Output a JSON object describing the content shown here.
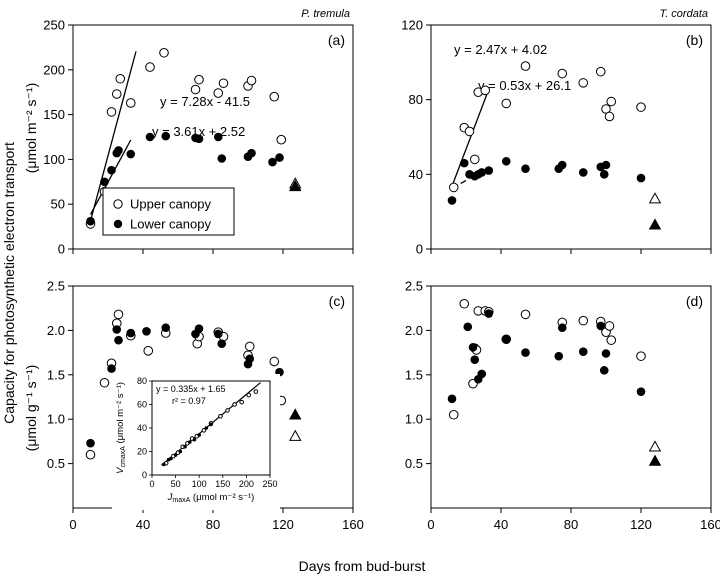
{
  "colors": {
    "ink": "#000000",
    "background": "#ffffff"
  },
  "labels": {
    "xlabel": "Days from bud-burst",
    "ylabel_line1": "Capacity for photosynthetic electron transport",
    "ylabel_top_line2": "(μmol m⁻² s⁻¹)",
    "ylabel_bottom_line2": "(μmol g⁻¹ s⁻¹)"
  },
  "legend": {
    "placement": "inside-bottom-left-of-panel-a",
    "upper": "Upper canopy",
    "lower": "Lower canopy"
  },
  "chart_data": [
    {
      "type": "scatter",
      "panel_label": "(a)",
      "species": "P. tremula",
      "xlim": [
        0,
        160
      ],
      "ylim": [
        0,
        250
      ],
      "xticks": [
        0,
        40,
        80,
        120,
        160
      ],
      "yticks": [
        0,
        50,
        100,
        150,
        200,
        250
      ],
      "x_tick_labels_shown": false,
      "series": [
        {
          "name": "Upper canopy",
          "marker": "open-circle",
          "points": [
            [
              10,
              28
            ],
            [
              18,
              64
            ],
            [
              22,
              153
            ],
            [
              25,
              173
            ],
            [
              27,
              190
            ],
            [
              33,
              163
            ],
            [
              44,
              203
            ],
            [
              52,
              219
            ],
            [
              70,
              178
            ],
            [
              72,
              189
            ],
            [
              83,
              174
            ],
            [
              86,
              185
            ],
            [
              100,
              182
            ],
            [
              102,
              188
            ],
            [
              115,
              170
            ],
            [
              119,
              122
            ]
          ]
        },
        {
          "name": "Lower canopy",
          "marker": "filled-circle",
          "points": [
            [
              10,
              31
            ],
            [
              18,
              75
            ],
            [
              22,
              88
            ],
            [
              25,
              107
            ],
            [
              26,
              110
            ],
            [
              33,
              106
            ],
            [
              44,
              125
            ],
            [
              53,
              126
            ],
            [
              70,
              124
            ],
            [
              72,
              123
            ],
            [
              83,
              125
            ],
            [
              85,
              101
            ],
            [
              100,
              103
            ],
            [
              102,
              107
            ],
            [
              114,
              97
            ],
            [
              118,
              102
            ]
          ]
        },
        {
          "name": "",
          "marker": "open-triangle",
          "points": [
            [
              127,
              73
            ]
          ]
        },
        {
          "name": "",
          "marker": "filled-triangle",
          "points": [
            [
              127,
              70
            ]
          ]
        }
      ],
      "fits": [
        {
          "label": "y = 7.28x - 41.5",
          "slope": 7.28,
          "intercept": -41.5,
          "x_range": [
            10,
            36
          ],
          "style": "solid"
        },
        {
          "label": "y = 3.61x + 2.52",
          "slope": 3.61,
          "intercept": 2.52,
          "x_range": [
            10,
            33
          ],
          "style": "solid"
        }
      ]
    },
    {
      "type": "scatter",
      "panel_label": "(b)",
      "species": "T. cordata",
      "xlim": [
        0,
        160
      ],
      "ylim": [
        0,
        120
      ],
      "xticks": [
        0,
        40,
        80,
        120,
        160
      ],
      "yticks": [
        0,
        40,
        80,
        120
      ],
      "x_tick_labels_shown": false,
      "series": [
        {
          "name": "Upper canopy",
          "marker": "open-circle",
          "points": [
            [
              13,
              33
            ],
            [
              19,
              65
            ],
            [
              22,
              63
            ],
            [
              25,
              48
            ],
            [
              27,
              84
            ],
            [
              31,
              85
            ],
            [
              43,
              78
            ],
            [
              54,
              98
            ],
            [
              75,
              94
            ],
            [
              87,
              89
            ],
            [
              97,
              95
            ],
            [
              100,
              75
            ],
            [
              102,
              71
            ],
            [
              103,
              79
            ],
            [
              120,
              76
            ]
          ]
        },
        {
          "name": "Lower canopy",
          "marker": "filled-circle",
          "points": [
            [
              12,
              26
            ],
            [
              19,
              46
            ],
            [
              22,
              40
            ],
            [
              25,
              39
            ],
            [
              27,
              40
            ],
            [
              29,
              41
            ],
            [
              33,
              42
            ],
            [
              43,
              47
            ],
            [
              54,
              43
            ],
            [
              73,
              43
            ],
            [
              75,
              45
            ],
            [
              87,
              41
            ],
            [
              97,
              44
            ],
            [
              99,
              40
            ],
            [
              100,
              45
            ],
            [
              120,
              38
            ]
          ]
        },
        {
          "name": "",
          "marker": "open-triangle",
          "points": [
            [
              128,
              27
            ]
          ]
        },
        {
          "name": "",
          "marker": "filled-triangle",
          "points": [
            [
              128,
              13
            ]
          ]
        }
      ],
      "fits": [
        {
          "label": "y = 2.47x + 4.02",
          "slope": 2.47,
          "intercept": 4.02,
          "x_range": [
            12,
            33
          ],
          "style": "solid"
        },
        {
          "label": "y = 0.53x + 26.1",
          "slope": 0.53,
          "intercept": 26.1,
          "x_range": [
            12,
            33
          ],
          "style": "dashed"
        }
      ]
    },
    {
      "type": "scatter",
      "panel_label": "(c)",
      "xlim": [
        0,
        160
      ],
      "ylim": [
        0,
        2.5
      ],
      "xticks": [
        0,
        40,
        80,
        120,
        160
      ],
      "yticks": [
        0.5,
        1.0,
        1.5,
        2.0,
        2.5
      ],
      "ytick_labels": [
        "0.5",
        "1.0",
        "1.5",
        "2.0",
        "2.5"
      ],
      "series": [
        {
          "name": "Upper canopy",
          "marker": "open-circle",
          "points": [
            [
              10,
              0.6
            ],
            [
              18,
              1.41
            ],
            [
              22,
              1.63
            ],
            [
              25,
              2.08
            ],
            [
              26,
              2.18
            ],
            [
              33,
              1.94
            ],
            [
              43,
              1.77
            ],
            [
              53,
              1.97
            ],
            [
              71,
              1.85
            ],
            [
              72,
              1.93
            ],
            [
              83,
              1.98
            ],
            [
              86,
              1.93
            ],
            [
              100,
              1.72
            ],
            [
              101,
              1.82
            ],
            [
              115,
              1.65
            ],
            [
              119,
              1.21
            ]
          ]
        },
        {
          "name": "Lower canopy",
          "marker": "filled-circle",
          "points": [
            [
              10,
              0.73
            ],
            [
              22,
              1.57
            ],
            [
              25,
              2.01
            ],
            [
              26,
              1.89
            ],
            [
              33,
              1.97
            ],
            [
              42,
              1.99
            ],
            [
              53,
              2.03
            ],
            [
              70,
              1.96
            ],
            [
              72,
              2.02
            ],
            [
              83,
              1.96
            ],
            [
              85,
              1.85
            ],
            [
              100,
              1.62
            ],
            [
              101,
              1.68
            ],
            [
              114,
              1.37
            ],
            [
              118,
              1.53
            ]
          ]
        },
        {
          "name": "",
          "marker": "open-triangle",
          "points": [
            [
              127,
              0.81
            ]
          ]
        },
        {
          "name": "",
          "marker": "filled-triangle",
          "points": [
            [
              127,
              1.05
            ]
          ]
        }
      ]
    },
    {
      "type": "scatter",
      "panel_label": "(d)",
      "xlim": [
        0,
        160
      ],
      "ylim": [
        0,
        2.5
      ],
      "xticks": [
        0,
        40,
        80,
        120,
        160
      ],
      "yticks": [
        0.5,
        1.0,
        1.5,
        2.0,
        2.5
      ],
      "ytick_labels": [
        "0.5",
        "1.0",
        "1.5",
        "2.0",
        "2.5"
      ],
      "series": [
        {
          "name": "Upper canopy",
          "marker": "open-circle",
          "points": [
            [
              13,
              1.05
            ],
            [
              19,
              2.3
            ],
            [
              24,
              1.4
            ],
            [
              25,
              1.8
            ],
            [
              26,
              1.78
            ],
            [
              27,
              2.22
            ],
            [
              31,
              2.22
            ],
            [
              33,
              2.21
            ],
            [
              43,
              1.9
            ],
            [
              54,
              2.18
            ],
            [
              75,
              2.09
            ],
            [
              87,
              2.11
            ],
            [
              97,
              2.1
            ],
            [
              100,
              1.98
            ],
            [
              102,
              2.05
            ],
            [
              103,
              1.89
            ],
            [
              120,
              1.71
            ]
          ]
        },
        {
          "name": "Lower canopy",
          "marker": "filled-circle",
          "points": [
            [
              12,
              1.23
            ],
            [
              21,
              2.04
            ],
            [
              24,
              1.81
            ],
            [
              25,
              1.67
            ],
            [
              27,
              1.45
            ],
            [
              29,
              1.51
            ],
            [
              33,
              2.19
            ],
            [
              43,
              1.9
            ],
            [
              54,
              1.75
            ],
            [
              73,
              1.71
            ],
            [
              75,
              2.03
            ],
            [
              87,
              1.76
            ],
            [
              97,
              2.05
            ],
            [
              99,
              1.55
            ],
            [
              100,
              1.74
            ],
            [
              120,
              1.31
            ]
          ]
        },
        {
          "name": "",
          "marker": "open-triangle",
          "points": [
            [
              128,
              0.69
            ]
          ]
        },
        {
          "name": "",
          "marker": "filled-triangle",
          "points": [
            [
              128,
              0.53
            ]
          ]
        }
      ]
    },
    {
      "type": "scatter",
      "panel": "inset-in-c",
      "xlabel_prefix": "J",
      "xlabel_sub": "maxA",
      "xlabel_units": " (μmol m⁻² s⁻¹)",
      "ylabel_prefix": "V",
      "ylabel_sub": "cmaxA",
      "ylabel_units": " (μmol m⁻² s⁻¹)",
      "xlim": [
        0,
        250
      ],
      "ylim": [
        0,
        80
      ],
      "xticks": [
        0,
        50,
        100,
        150,
        200,
        250
      ],
      "yticks": [
        0,
        20,
        40,
        60,
        80
      ],
      "fit": {
        "label": "y = 0.335x + 1.65",
        "r2_label": "r² = 0.97",
        "slope": 0.335,
        "intercept": 1.65,
        "x_range": [
          20,
          230
        ]
      },
      "series": [
        {
          "name": "",
          "marker": "open-circle-small",
          "points": [
            [
              30,
              10
            ],
            [
              45,
              16
            ],
            [
              55,
              19
            ],
            [
              65,
              24
            ],
            [
              75,
              27
            ],
            [
              85,
              31
            ],
            [
              95,
              33
            ],
            [
              110,
              38
            ],
            [
              125,
              44
            ],
            [
              145,
              50
            ],
            [
              160,
              55
            ],
            [
              175,
              60
            ],
            [
              190,
              62
            ],
            [
              205,
              68
            ],
            [
              220,
              71
            ]
          ]
        },
        {
          "name": "",
          "marker": "filled-circle-small",
          "points": [
            [
              25,
              9
            ],
            [
              35,
              13
            ],
            [
              40,
              14
            ],
            [
              50,
              17
            ],
            [
              60,
              20
            ],
            [
              70,
              24
            ],
            [
              80,
              28
            ],
            [
              90,
              30
            ],
            [
              100,
              34
            ],
            [
              115,
              40
            ],
            [
              125,
              43
            ]
          ]
        }
      ]
    }
  ]
}
